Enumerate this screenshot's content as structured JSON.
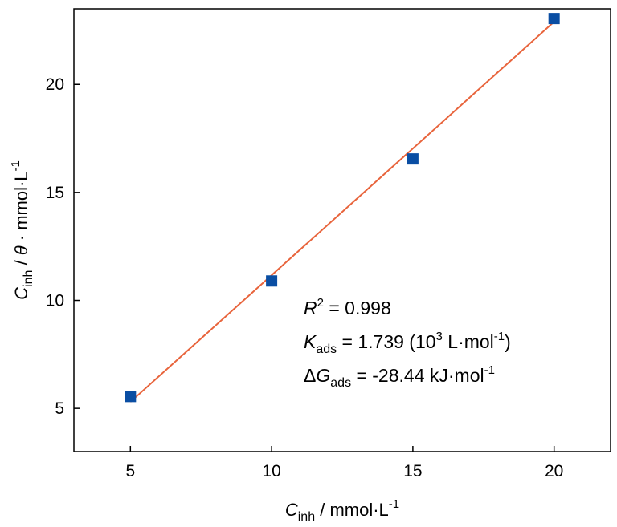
{
  "chart_data": {
    "type": "scatter",
    "x": [
      5,
      10,
      15,
      20
    ],
    "y": [
      5.55,
      10.9,
      16.55,
      23.05
    ],
    "fit_line": {
      "x": [
        5,
        20
      ],
      "y": [
        5.3,
        22.9
      ],
      "color": "#e8643c"
    },
    "marker_color": "#0a4ea3",
    "xlim": [
      3,
      22
    ],
    "ylim": [
      3,
      23.5
    ],
    "x_ticks": [
      5,
      10,
      15,
      20
    ],
    "y_ticks": [
      5,
      10,
      15,
      20
    ],
    "x_tick_labels": [
      "5",
      "10",
      "15",
      "20"
    ],
    "y_tick_labels": [
      "5",
      "10",
      "15",
      "20"
    ],
    "xlabel": {
      "main": "C",
      "sub": "inh",
      "rest": " / mmol·L",
      "sup": "-1"
    },
    "ylabel": {
      "main": "C",
      "sub": "inh",
      "mid": " / ",
      "theta": "θ",
      "rest": " · mmol·L",
      "sup": "-1"
    },
    "annotations": {
      "r2": {
        "main": "R",
        "sup": "2",
        "rest": " = 0.998"
      },
      "kads": {
        "main": "K",
        "sub": "ads",
        "mid": " = 1.739 (10",
        "sup": "3",
        "rest": " L·mol",
        "sup2": "-1",
        "end": ")"
      },
      "dg": {
        "delta": "Δ",
        "main": "G",
        "sub": "ads",
        "rest": " = -28.44 kJ·mol",
        "sup": "-1"
      }
    },
    "grid": false,
    "legend": "none"
  }
}
